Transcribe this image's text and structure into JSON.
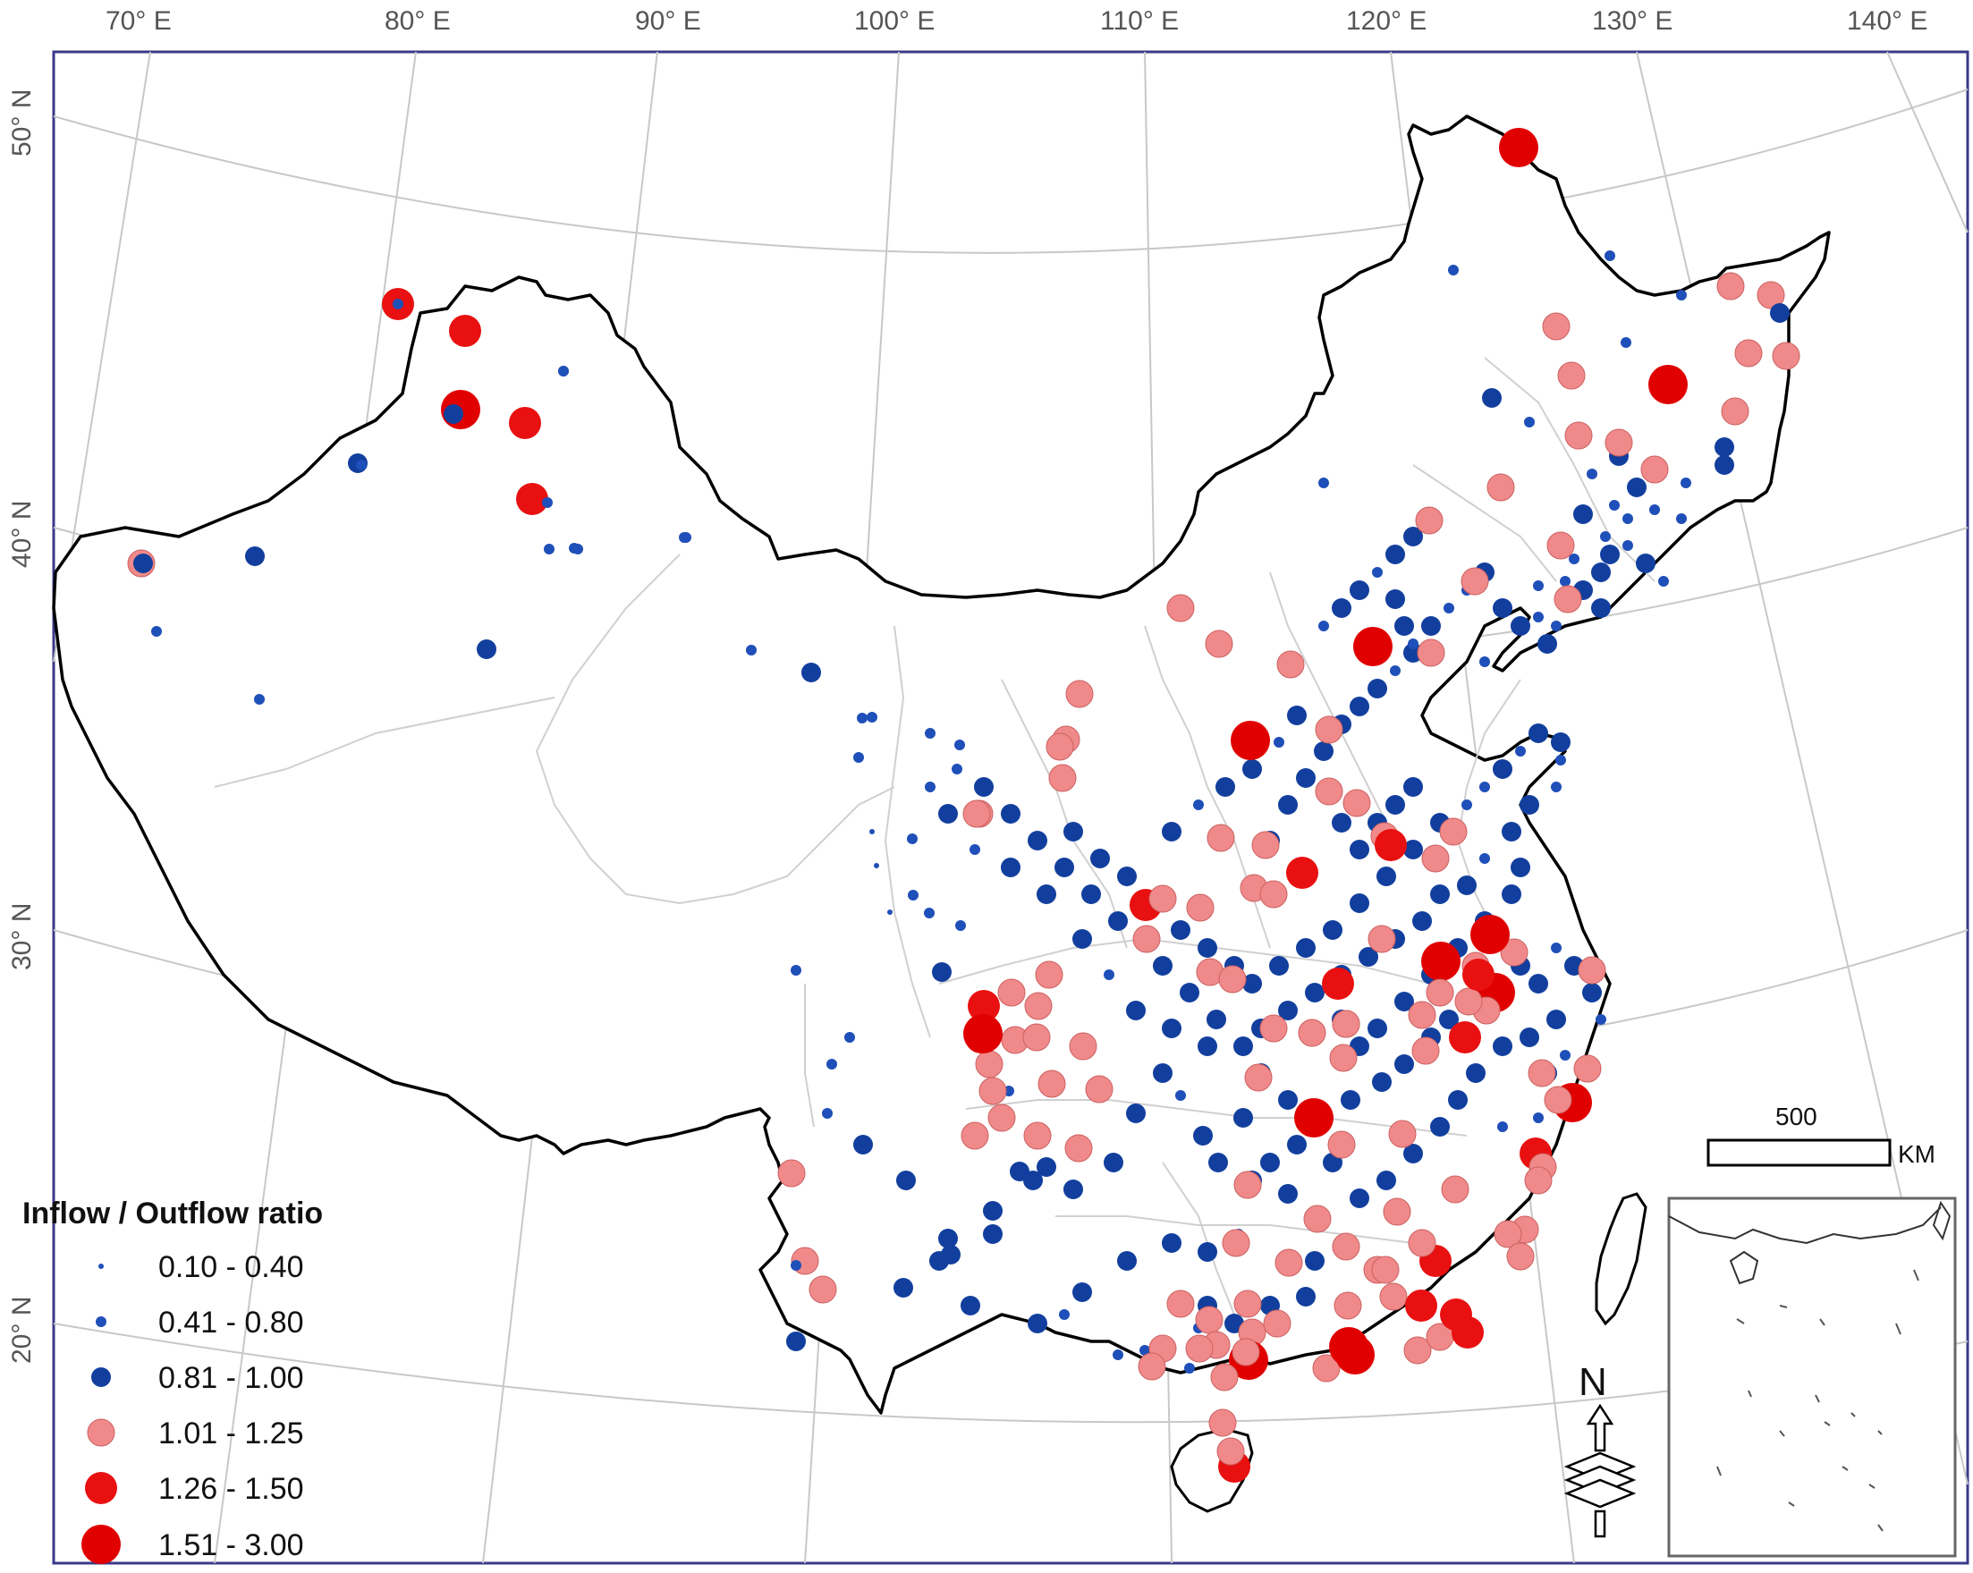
{
  "map": {
    "lon_labels": [
      "70° E",
      "80° E",
      "90° E",
      "100° E",
      "110° E",
      "120° E",
      "130° E",
      "140° E"
    ],
    "lat_labels": [
      "50° N",
      "40° N",
      "30° N",
      "20° N"
    ],
    "legend": {
      "title": "Inflow / Outflow ratio",
      "classes": [
        {
          "label": "0.10 - 0.40",
          "color": "#1f4fb8"
        },
        {
          "label": "0.41 - 0.80",
          "color": "#1f4fb8"
        },
        {
          "label": "0.81 - 1.00",
          "color": "#123f9e"
        },
        {
          "label": "1.01 - 1.25",
          "color": "#f08a8a"
        },
        {
          "label": "1.26 - 1.50",
          "color": "#e81010"
        },
        {
          "label": "1.51 - 3.00",
          "color": "#e00000"
        }
      ]
    },
    "scale_bar": {
      "value": "500",
      "unit": "KM"
    },
    "north_arrow": {
      "label": "N",
      "icon": "north-arrow-icon"
    },
    "colors": {
      "frame": "#3a3a8a",
      "graticule": "#c8c8c8",
      "border": "#000000",
      "province": "#d0d0d0"
    }
  }
}
